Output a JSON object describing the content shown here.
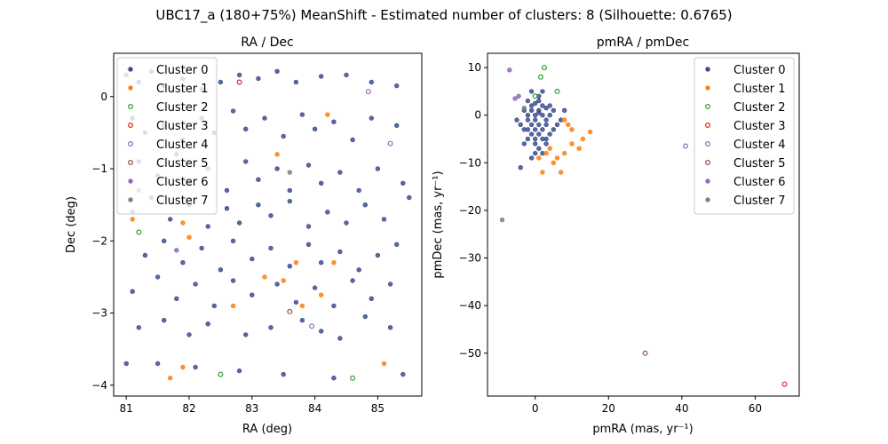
{
  "figure": {
    "suptitle": "UBC17_a (180+75%) MeanShift - Estimated number of clusters: 8 (Silhouette: 0.6765)"
  },
  "chart_data": [
    {
      "type": "scatter",
      "title": "RA / Dec",
      "xlabel": "RA (deg)",
      "ylabel": "Dec (deg)",
      "xlim": [
        80.8,
        85.7
      ],
      "ylim": [
        -4.15,
        0.6
      ],
      "xticks": [
        81,
        82,
        83,
        84,
        85
      ],
      "yticks": [
        0,
        -1,
        -2,
        -3,
        -4
      ],
      "grid": false,
      "legend_position": "top-left",
      "series": [
        {
          "name": "Cluster 0",
          "color": "#3b4d8f",
          "hollow": false,
          "points": [
            [
              81.0,
              0.3
            ],
            [
              81.2,
              0.2
            ],
            [
              81.4,
              0.35
            ],
            [
              81.6,
              0.15
            ],
            [
              81.9,
              0.25
            ],
            [
              82.2,
              0.1
            ],
            [
              82.5,
              0.2
            ],
            [
              82.8,
              0.3
            ],
            [
              83.1,
              0.25
            ],
            [
              83.4,
              0.35
            ],
            [
              83.7,
              0.2
            ],
            [
              84.1,
              0.28
            ],
            [
              84.5,
              0.3
            ],
            [
              84.9,
              0.2
            ],
            [
              85.3,
              0.15
            ],
            [
              81.1,
              -0.3
            ],
            [
              81.3,
              -0.5
            ],
            [
              81.6,
              -0.4
            ],
            [
              81.9,
              -0.6
            ],
            [
              82.2,
              -0.3
            ],
            [
              82.4,
              -0.5
            ],
            [
              82.7,
              -0.2
            ],
            [
              82.9,
              -0.45
            ],
            [
              83.2,
              -0.3
            ],
            [
              83.5,
              -0.55
            ],
            [
              83.8,
              -0.25
            ],
            [
              84.0,
              -0.45
            ],
            [
              84.3,
              -0.35
            ],
            [
              84.6,
              -0.6
            ],
            [
              84.9,
              -0.3
            ],
            [
              85.3,
              -0.4
            ],
            [
              81.2,
              -0.9
            ],
            [
              81.5,
              -1.1
            ],
            [
              81.8,
              -0.8
            ],
            [
              82.0,
              -1.2
            ],
            [
              82.3,
              -1.0
            ],
            [
              82.6,
              -1.3
            ],
            [
              82.9,
              -0.9
            ],
            [
              83.1,
              -1.15
            ],
            [
              83.4,
              -1.0
            ],
            [
              83.6,
              -1.3
            ],
            [
              83.9,
              -0.95
            ],
            [
              84.1,
              -1.2
            ],
            [
              84.4,
              -1.05
            ],
            [
              84.7,
              -1.3
            ],
            [
              85.0,
              -1.0
            ],
            [
              85.4,
              -1.2
            ],
            [
              81.1,
              -1.6
            ],
            [
              81.4,
              -1.4
            ],
            [
              81.7,
              -1.7
            ],
            [
              82.0,
              -1.5
            ],
            [
              82.3,
              -1.8
            ],
            [
              82.6,
              -1.55
            ],
            [
              82.8,
              -1.75
            ],
            [
              83.1,
              -1.5
            ],
            [
              83.3,
              -1.65
            ],
            [
              83.6,
              -1.45
            ],
            [
              83.9,
              -1.8
            ],
            [
              84.2,
              -1.6
            ],
            [
              84.5,
              -1.75
            ],
            [
              84.8,
              -1.5
            ],
            [
              85.1,
              -1.7
            ],
            [
              85.5,
              -1.4
            ],
            [
              81.3,
              -2.2
            ],
            [
              81.6,
              -2.0
            ],
            [
              81.9,
              -2.3
            ],
            [
              82.2,
              -2.1
            ],
            [
              82.5,
              -2.4
            ],
            [
              82.7,
              -2.0
            ],
            [
              83.0,
              -2.25
            ],
            [
              83.3,
              -2.1
            ],
            [
              83.6,
              -2.35
            ],
            [
              83.9,
              -2.05
            ],
            [
              84.1,
              -2.3
            ],
            [
              84.4,
              -2.15
            ],
            [
              84.7,
              -2.4
            ],
            [
              85.0,
              -2.2
            ],
            [
              85.3,
              -2.05
            ],
            [
              81.1,
              -2.7
            ],
            [
              81.5,
              -2.5
            ],
            [
              81.8,
              -2.8
            ],
            [
              82.1,
              -2.6
            ],
            [
              82.4,
              -2.9
            ],
            [
              82.7,
              -2.55
            ],
            [
              83.0,
              -2.75
            ],
            [
              83.4,
              -2.6
            ],
            [
              83.7,
              -2.85
            ],
            [
              84.0,
              -2.65
            ],
            [
              84.3,
              -2.9
            ],
            [
              84.6,
              -2.55
            ],
            [
              84.9,
              -2.8
            ],
            [
              85.2,
              -2.6
            ],
            [
              81.2,
              -3.2
            ],
            [
              81.6,
              -3.1
            ],
            [
              82.0,
              -3.3
            ],
            [
              82.3,
              -3.15
            ],
            [
              82.9,
              -3.3
            ],
            [
              83.3,
              -3.2
            ],
            [
              83.8,
              -3.1
            ],
            [
              84.1,
              -3.25
            ],
            [
              84.4,
              -3.35
            ],
            [
              84.8,
              -3.05
            ],
            [
              85.2,
              -3.2
            ],
            [
              81.0,
              -3.7
            ],
            [
              81.5,
              -3.7
            ],
            [
              82.1,
              -3.75
            ],
            [
              82.8,
              -3.8
            ],
            [
              83.5,
              -3.85
            ],
            [
              84.3,
              -3.9
            ],
            [
              85.4,
              -3.85
            ]
          ]
        },
        {
          "name": "Cluster 1",
          "color": "#ff7f0e",
          "hollow": false,
          "points": [
            [
              84.2,
              -0.25
            ],
            [
              83.4,
              -0.8
            ],
            [
              81.1,
              -1.7
            ],
            [
              81.9,
              -1.75
            ],
            [
              82.0,
              -1.95
            ],
            [
              83.2,
              -2.5
            ],
            [
              83.7,
              -2.3
            ],
            [
              84.3,
              -2.3
            ],
            [
              83.5,
              -2.55
            ],
            [
              84.1,
              -2.75
            ],
            [
              82.7,
              -2.9
            ],
            [
              83.8,
              -2.9
            ],
            [
              81.7,
              -3.9
            ],
            [
              81.9,
              -3.75
            ],
            [
              85.1,
              -3.7
            ]
          ]
        },
        {
          "name": "Cluster 2",
          "color": "#2ca02c",
          "hollow": true,
          "points": [
            [
              81.2,
              -1.88
            ],
            [
              82.5,
              -3.85
            ],
            [
              84.6,
              -3.9
            ]
          ]
        },
        {
          "name": "Cluster 3",
          "color": "#d62728",
          "hollow": true,
          "points": [
            [
              82.8,
              0.2
            ]
          ]
        },
        {
          "name": "Cluster 4",
          "color": "#9467bd",
          "hollow": true,
          "points": [
            [
              85.2,
              -0.65
            ],
            [
              84.85,
              0.07
            ],
            [
              83.95,
              -3.18
            ]
          ]
        },
        {
          "name": "Cluster 5",
          "color": "#8c564b",
          "hollow": true,
          "points": [
            [
              83.6,
              -2.98
            ]
          ]
        },
        {
          "name": "Cluster 6",
          "color": "#9467bd",
          "hollow": false,
          "points": [
            [
              81.05,
              0.38
            ],
            [
              81.8,
              -2.13
            ]
          ]
        },
        {
          "name": "Cluster 7",
          "color": "#7f7f7f",
          "hollow": false,
          "points": [
            [
              81.2,
              -1.3
            ],
            [
              83.6,
              -1.05
            ]
          ]
        }
      ]
    },
    {
      "type": "scatter",
      "title": "pmRA / pmDec",
      "xlabel": "pmRA (mas, yr⁻¹)",
      "ylabel": "pmDec (mas, yr⁻¹)",
      "xlim": [
        -13,
        72
      ],
      "ylim": [
        -59,
        13
      ],
      "xticks": [
        0,
        20,
        40,
        60
      ],
      "yticks": [
        10,
        0,
        -10,
        -20,
        -30,
        -40,
        -50
      ],
      "grid": false,
      "legend_position": "top-right",
      "series": [
        {
          "name": "Cluster 0",
          "color": "#3b4d8f",
          "hollow": false,
          "points": [
            [
              -2,
              3
            ],
            [
              -1,
              2
            ],
            [
              0,
              2.5
            ],
            [
              1,
              3
            ],
            [
              2,
              2
            ],
            [
              3,
              1.5
            ],
            [
              -3,
              1
            ],
            [
              -2,
              0
            ],
            [
              -1,
              1
            ],
            [
              0,
              0
            ],
            [
              1,
              1
            ],
            [
              2,
              0
            ],
            [
              3,
              -1
            ],
            [
              4,
              0
            ],
            [
              -2,
              -1
            ],
            [
              -1,
              -2
            ],
            [
              0,
              -1
            ],
            [
              1,
              -2
            ],
            [
              2,
              -3
            ],
            [
              3,
              -2
            ],
            [
              -3,
              -3
            ],
            [
              -1,
              -4
            ],
            [
              0,
              -3
            ],
            [
              1,
              -4
            ],
            [
              2,
              -5
            ],
            [
              -2,
              -5
            ],
            [
              0,
              -6
            ],
            [
              1,
              -7
            ],
            [
              3,
              -6
            ],
            [
              4,
              -4
            ],
            [
              5,
              -3
            ],
            [
              6,
              -2
            ],
            [
              7,
              -1
            ],
            [
              8,
              1
            ],
            [
              -4,
              -2
            ],
            [
              -5,
              -1
            ],
            [
              -1,
              -9
            ],
            [
              -4,
              -11
            ],
            [
              0,
              -8
            ],
            [
              2,
              -8
            ],
            [
              3,
              -5
            ],
            [
              -3,
              -6
            ],
            [
              4,
              2
            ],
            [
              5,
              1
            ],
            [
              1,
              4
            ],
            [
              -1,
              5
            ],
            [
              2,
              5
            ],
            [
              0,
              -5
            ],
            [
              -2,
              -3
            ],
            [
              1,
              0.5
            ]
          ]
        },
        {
          "name": "Cluster 1",
          "color": "#ff7f0e",
          "hollow": false,
          "points": [
            [
              9,
              -2
            ],
            [
              10,
              -3
            ],
            [
              15,
              -3.5
            ],
            [
              8,
              -1
            ],
            [
              10,
              -6
            ],
            [
              13,
              -5
            ],
            [
              12,
              -7
            ],
            [
              8,
              -8
            ],
            [
              6,
              -9
            ],
            [
              5,
              -10
            ],
            [
              7,
              -12
            ],
            [
              2,
              -12
            ],
            [
              1,
              -9
            ],
            [
              3,
              -8
            ],
            [
              4,
              -7
            ]
          ]
        },
        {
          "name": "Cluster 2",
          "color": "#2ca02c",
          "hollow": true,
          "points": [
            [
              1.5,
              8
            ],
            [
              2.5,
              10
            ],
            [
              6,
              5
            ],
            [
              0,
              4
            ]
          ]
        },
        {
          "name": "Cluster 3",
          "color": "#d62728",
          "hollow": true,
          "points": [
            [
              68,
              -56.5
            ]
          ]
        },
        {
          "name": "Cluster 4",
          "color": "#9467bd",
          "hollow": true,
          "points": [
            [
              41,
              -6.5
            ]
          ]
        },
        {
          "name": "Cluster 5",
          "color": "#8c564b",
          "hollow": true,
          "points": [
            [
              30,
              -50
            ]
          ]
        },
        {
          "name": "Cluster 6",
          "color": "#9467bd",
          "hollow": false,
          "points": [
            [
              -7,
              9.5
            ],
            [
              -5.5,
              3.5
            ],
            [
              -4.5,
              4
            ]
          ]
        },
        {
          "name": "Cluster 7",
          "color": "#7f7f7f",
          "hollow": false,
          "points": [
            [
              -9,
              -22
            ],
            [
              -3,
              1.5
            ]
          ]
        }
      ]
    }
  ]
}
